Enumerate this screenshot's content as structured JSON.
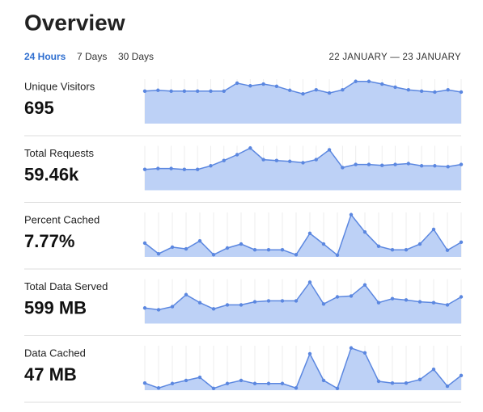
{
  "header": {
    "title": "Overview"
  },
  "tabs": {
    "items": [
      "24 Hours",
      "7 Days",
      "30 Days"
    ],
    "selected": 0
  },
  "date_range": "22 JANUARY — 23 JANUARY",
  "metrics": [
    {
      "label": "Unique Visitors",
      "value": "695",
      "spark": [
        73,
        75,
        73,
        73,
        73,
        73,
        73,
        91,
        85,
        89,
        84,
        75,
        67,
        76,
        69,
        76,
        95,
        95,
        89,
        82,
        76,
        73,
        71,
        76,
        71
      ]
    },
    {
      "label": "Total Requests",
      "value": "59.46k",
      "spark": [
        47,
        49,
        49,
        47,
        47,
        55,
        67,
        80,
        95,
        69,
        67,
        65,
        62,
        69,
        91,
        51,
        58,
        58,
        56,
        58,
        60,
        55,
        55,
        53,
        58
      ]
    },
    {
      "label": "Percent Cached",
      "value": "7.77%",
      "spark": [
        31,
        7,
        22,
        18,
        36,
        5,
        20,
        29,
        16,
        16,
        16,
        5,
        53,
        29,
        4,
        95,
        56,
        24,
        16,
        16,
        29,
        62,
        15,
        33
      ]
    },
    {
      "label": "Total Data Served",
      "value": "599 MB",
      "spark": [
        35,
        31,
        38,
        65,
        47,
        33,
        42,
        42,
        49,
        51,
        51,
        51,
        93,
        44,
        60,
        62,
        87,
        47,
        56,
        53,
        49,
        47,
        42,
        60
      ]
    },
    {
      "label": "Data Cached",
      "value": "47 MB",
      "spark": [
        16,
        5,
        15,
        22,
        29,
        4,
        15,
        22,
        15,
        15,
        15,
        5,
        82,
        22,
        4,
        95,
        84,
        20,
        16,
        16,
        24,
        47,
        9,
        33
      ]
    }
  ]
}
